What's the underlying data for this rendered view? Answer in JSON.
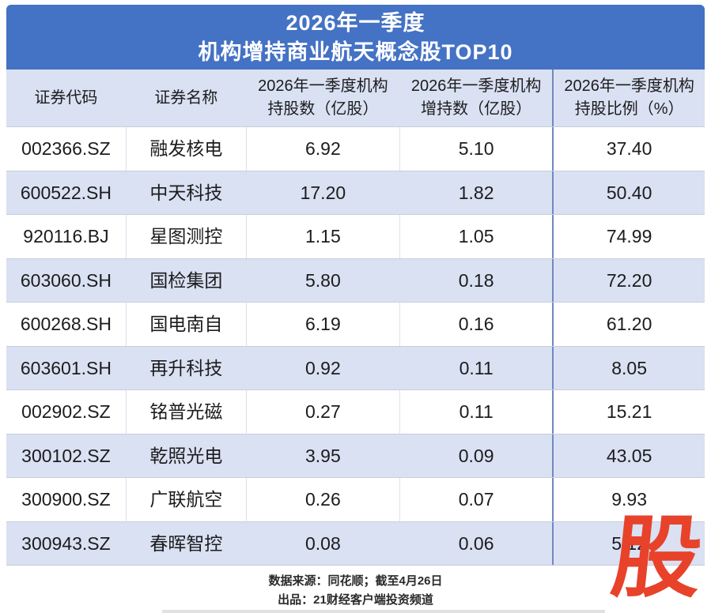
{
  "title": {
    "line1": "2026年一季度",
    "line2": "机构增持商业航天概念股TOP10"
  },
  "chart_data": {
    "type": "table",
    "title": "2026年一季度 机构增持商业航天概念股TOP10",
    "columns": [
      {
        "line1": "证券代码",
        "line2": ""
      },
      {
        "line1": "证券名称",
        "line2": ""
      },
      {
        "line1": "2026年一季度机构",
        "line2": "持股数（亿股）"
      },
      {
        "line1": "2026年一季度机构",
        "line2": "增持数（亿股）"
      },
      {
        "line1": "2026年一季度机构",
        "line2": "持股比例（%）"
      }
    ],
    "rows": [
      [
        "002366.SZ",
        "融发核电",
        "6.92",
        "5.10",
        "37.40"
      ],
      [
        "600522.SH",
        "中天科技",
        "17.20",
        "1.82",
        "50.40"
      ],
      [
        "920116.BJ",
        "星图测控",
        "1.15",
        "1.05",
        "74.99"
      ],
      [
        "603060.SH",
        "国检集团",
        "5.80",
        "0.18",
        "72.20"
      ],
      [
        "600268.SH",
        "国电南自",
        "6.19",
        "0.16",
        "61.20"
      ],
      [
        "603601.SH",
        "再升科技",
        "0.92",
        "0.11",
        "8.05"
      ],
      [
        "002902.SZ",
        "铭普光磁",
        "0.27",
        "0.11",
        "15.21"
      ],
      [
        "300102.SZ",
        "乾照光电",
        "3.95",
        "0.09",
        "43.05"
      ],
      [
        "300900.SZ",
        "广联航空",
        "0.26",
        "0.07",
        "9.93"
      ],
      [
        "300943.SZ",
        "春晖智控",
        "0.08",
        "0.06",
        "5.12"
      ]
    ]
  },
  "footer": {
    "source": "数据来源：同花顺；截至4月26日",
    "producer": "出品：21财经客户端投资频道"
  },
  "logo": {
    "char": "股",
    "color": "#e8422b"
  },
  "colors": {
    "title_bg": "#4472c4",
    "row_alt": "#d9e1f2",
    "divider_blue": "#7089be",
    "logo_red": "#e8422b"
  }
}
